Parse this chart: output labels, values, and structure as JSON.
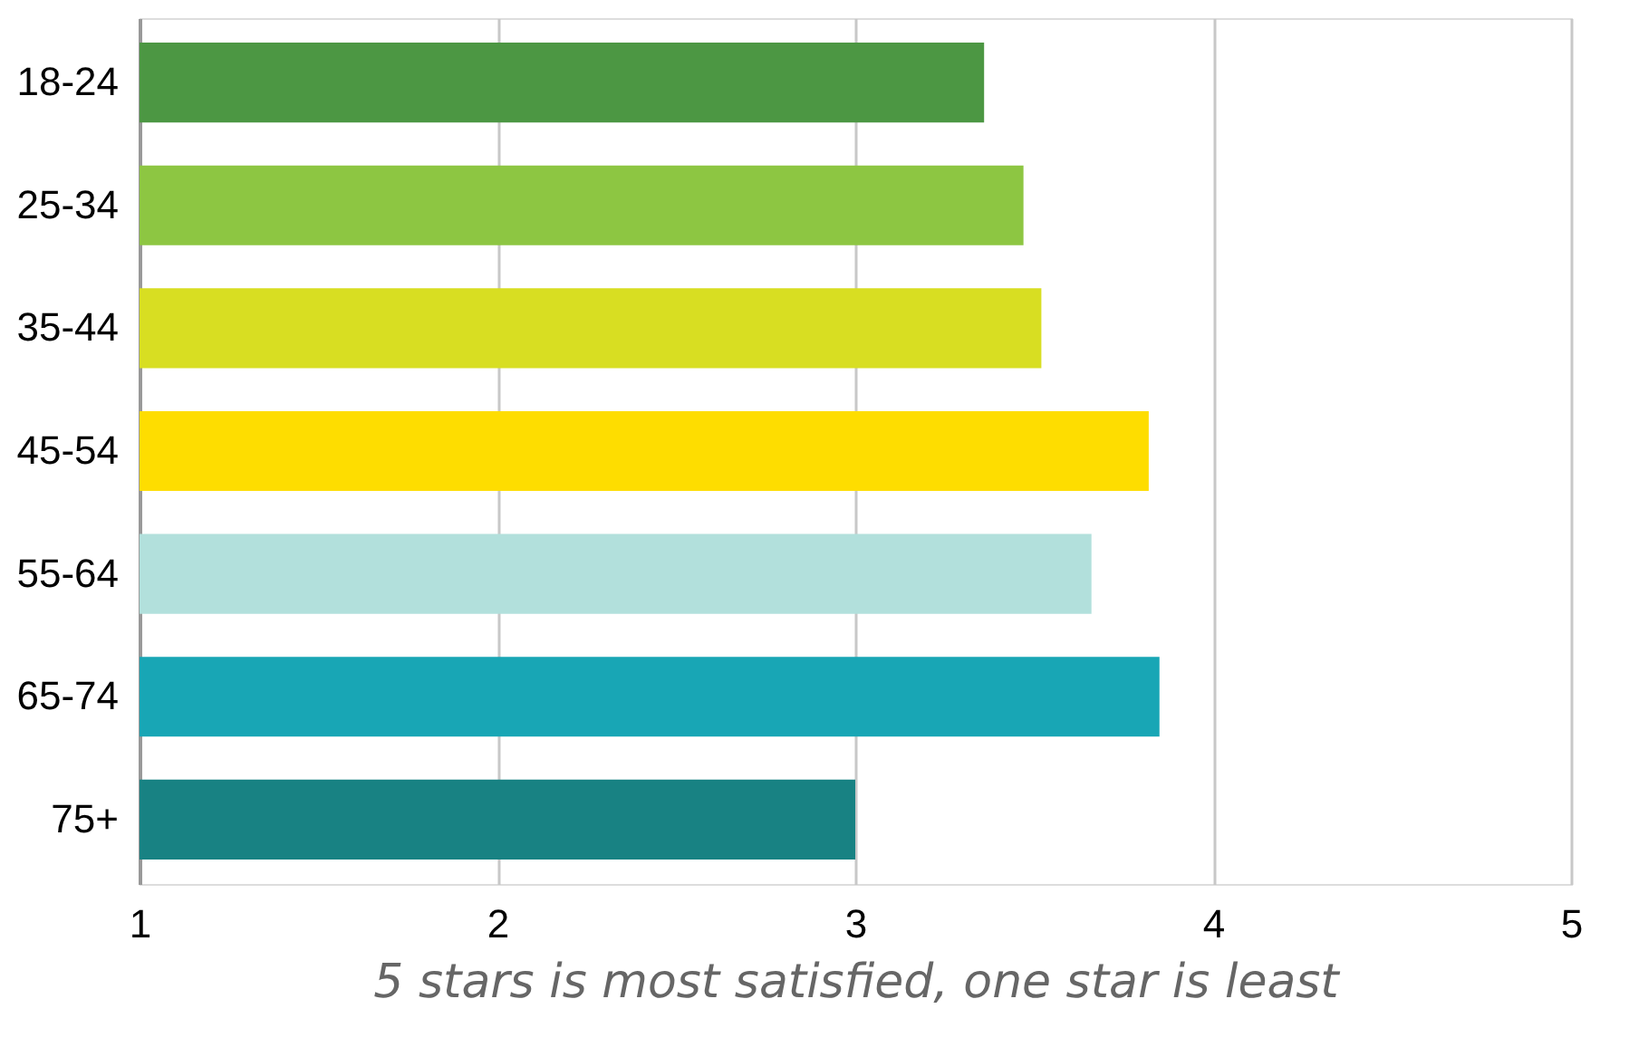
{
  "chart_data": {
    "type": "bar",
    "orientation": "horizontal",
    "xlabel": "5 stars is most satisfied, one star is least",
    "categories": [
      "18-24",
      "25-34",
      "35-44",
      "45-54",
      "55-64",
      "65-74",
      "75+"
    ],
    "values": [
      3.36,
      3.47,
      3.52,
      3.82,
      3.66,
      3.85,
      3.0
    ],
    "colors": [
      "#4c9743",
      "#8dc642",
      "#d8de22",
      "#fedd00",
      "#b2e0dc",
      "#18a6b5",
      "#188283"
    ],
    "xlim": [
      1,
      5
    ],
    "xticks": [
      1,
      2,
      3,
      4,
      5
    ],
    "grid": "x",
    "legend": false
  }
}
